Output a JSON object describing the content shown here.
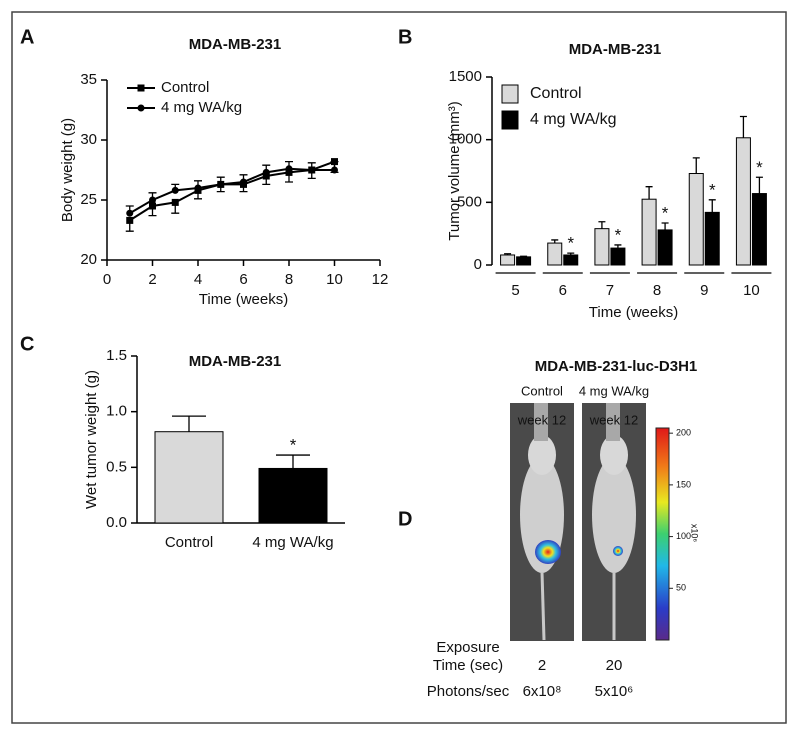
{
  "chart_data": [
    {
      "type": "line",
      "panel_label": "A",
      "title": "MDA-MB-231",
      "xlabel": "Time (weeks)",
      "ylabel": "Body weight (g)",
      "x": [
        1,
        2,
        3,
        4,
        5,
        6,
        7,
        8,
        9,
        10
      ],
      "series": [
        {
          "name": "Control",
          "color": "#000000",
          "marker": "square",
          "values": [
            23.3,
            24.5,
            24.8,
            25.8,
            26.3,
            26.3,
            27.0,
            27.3,
            27.5,
            28.2
          ],
          "errors": [
            0.9,
            0.8,
            0.9,
            0.7,
            0.6,
            0.6,
            0.7,
            0.8,
            0.7,
            0.9
          ]
        },
        {
          "name": "4 mg WA/kg",
          "color": "#000000",
          "marker": "circle",
          "values": [
            23.9,
            25.0,
            25.8,
            26.0,
            26.3,
            26.5,
            27.3,
            27.6,
            27.5,
            27.5
          ],
          "errors": [
            0.6,
            0.6,
            0.5,
            0.6,
            0.6,
            0.6,
            0.6,
            0.6,
            0.6,
            0.7
          ]
        }
      ],
      "xlim": [
        0,
        12
      ],
      "xticks": [
        0,
        2,
        4,
        6,
        8,
        10,
        12
      ],
      "ylim": [
        20,
        35
      ],
      "yticks": [
        20,
        25,
        30,
        35
      ],
      "legend": "upper left"
    },
    {
      "type": "bar",
      "panel_label": "B",
      "title": "MDA-MB-231",
      "xlabel": "Time (weeks)",
      "ylabel": "Tumor volume (mm³)",
      "categories": [
        "5",
        "6",
        "7",
        "8",
        "9",
        "10"
      ],
      "series": [
        {
          "name": "Control",
          "color": "#d9d9d9",
          "values": [
            80,
            175,
            290,
            525,
            730,
            1015
          ],
          "errors": [
            10,
            25,
            55,
            100,
            125,
            170
          ]
        },
        {
          "name": "4 mg WA/kg",
          "color": "#000000",
          "values": [
            65,
            80,
            135,
            280,
            420,
            570
          ],
          "errors": [
            5,
            15,
            25,
            55,
            100,
            130
          ],
          "significance": [
            null,
            "*",
            "*",
            "*",
            "*",
            "*"
          ]
        }
      ],
      "ylim": [
        0,
        1500
      ],
      "yticks": [
        0,
        500,
        1000,
        1500
      ],
      "legend": "upper left"
    },
    {
      "type": "bar",
      "panel_label": "C",
      "title": "MDA-MB-231",
      "ylabel": "Wet tumor weight (g)",
      "categories": [
        "Control",
        "4 mg WA/kg"
      ],
      "series": [
        {
          "colors": [
            "#d9d9d9",
            "#000000"
          ],
          "values": [
            0.82,
            0.49
          ],
          "errors": [
            0.14,
            0.12
          ],
          "significance": [
            null,
            "*"
          ]
        }
      ],
      "ylim": [
        0,
        1.5
      ],
      "yticks": [
        {
          "value": 0,
          "label": "0.0"
        },
        0.5,
        {
          "value": 1,
          "label": "1.0"
        },
        1.5
      ]
    }
  ],
  "panel_d": {
    "panel_label": "D",
    "title": "MDA-MB-231-luc-D3H1",
    "groups": [
      {
        "name": "Control",
        "time": "week 12",
        "exposure": "2",
        "photons": "6x10⁸"
      },
      {
        "name": "4 mg WA/kg",
        "time": "week 12",
        "exposure": "20",
        "photons": "5x10⁶"
      }
    ],
    "exposure_label": [
      "Exposure",
      "Time (sec)"
    ],
    "photons_label": "Photons/sec",
    "colorbar": {
      "ticks": [
        200,
        150,
        100,
        50
      ],
      "lim": [
        0,
        205
      ],
      "unit": "x10⁶"
    }
  }
}
